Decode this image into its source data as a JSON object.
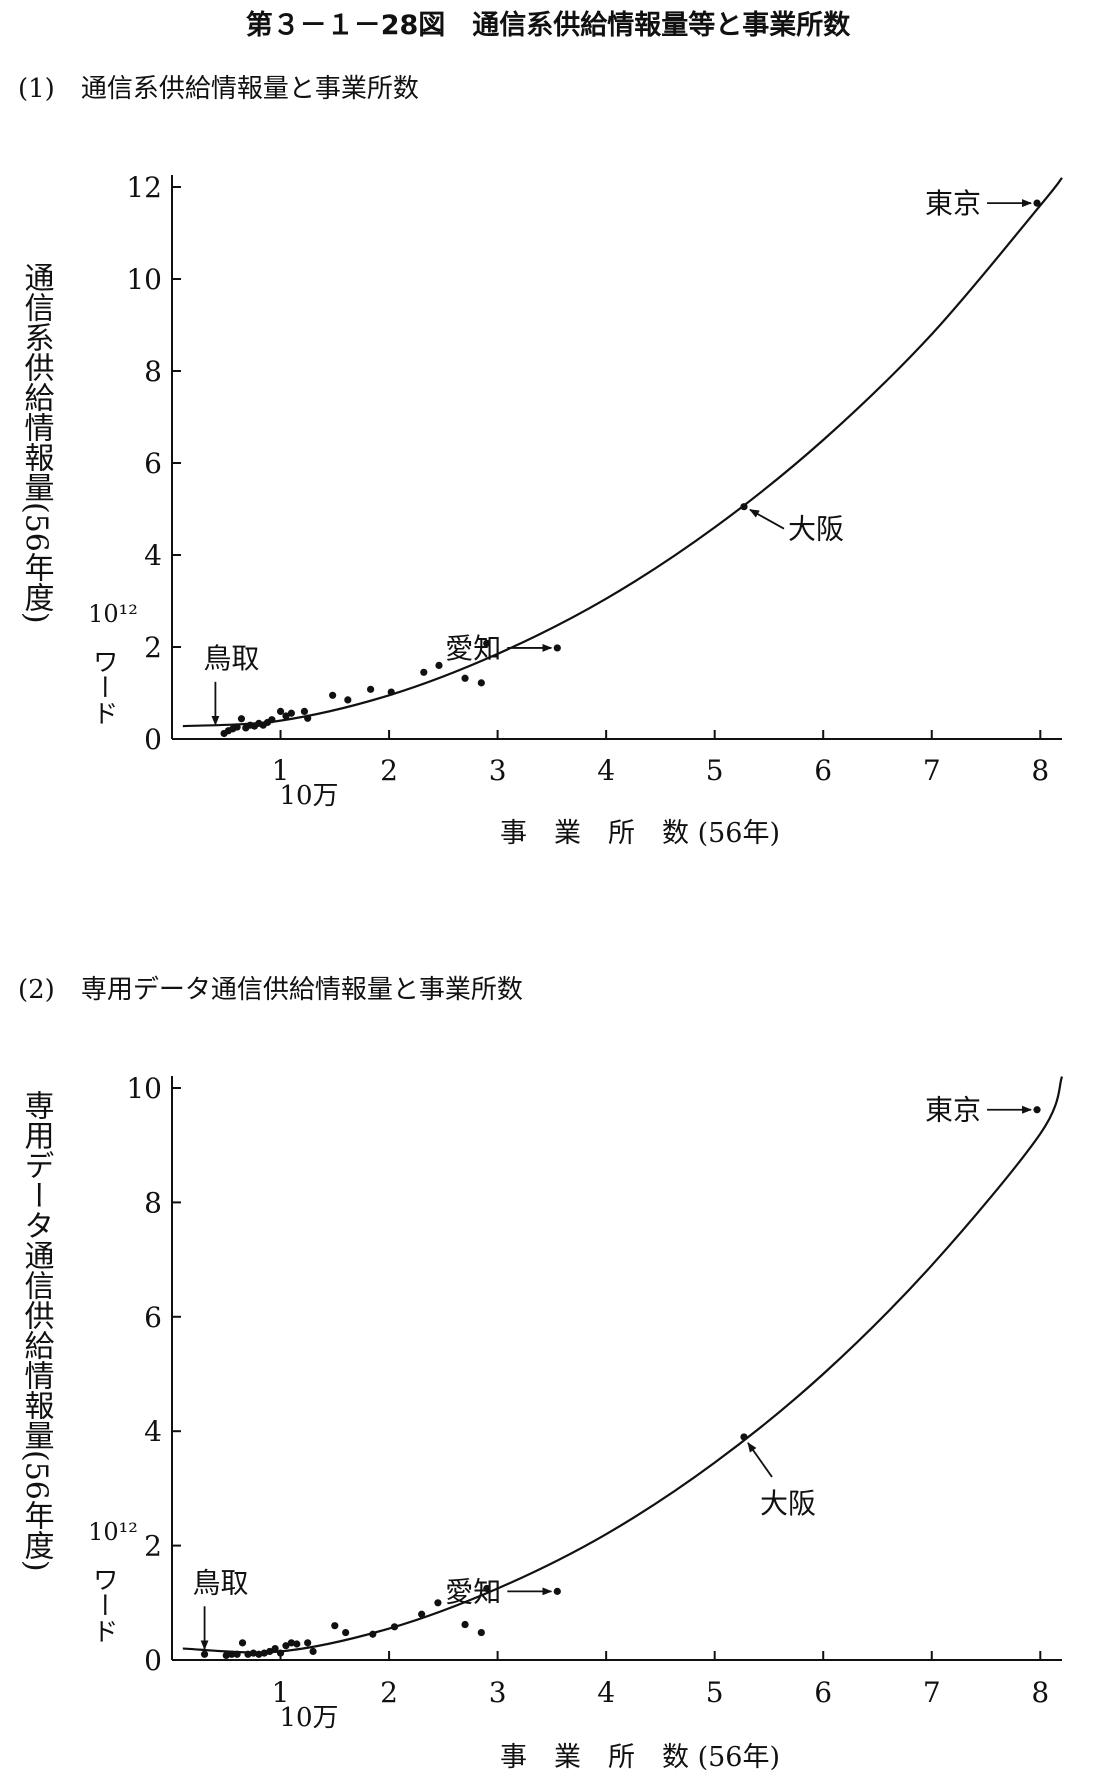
{
  "figure_title": "第３－１－28図　通信系供給情報量等と事業所数",
  "chart_data": [
    {
      "type": "scatter",
      "subtitle": "(1)　通信系供給情報量と事業所数",
      "ylabel": "通信系供給情報量(56年度)",
      "y_unit_top": "10¹²",
      "y_unit_bottom": "ワード",
      "xlabel": "事　業　所　数 (56年)",
      "x_unit": "10万",
      "xlim": [
        0,
        8.2
      ],
      "ylim": [
        0,
        12
      ],
      "x_ticks": [
        1,
        2,
        3,
        4,
        5,
        6,
        7,
        8
      ],
      "y_ticks": [
        0,
        2,
        4,
        6,
        8,
        10,
        12
      ],
      "grid": false,
      "points": [
        {
          "x": 0.48,
          "y": 0.12
        },
        {
          "x": 0.52,
          "y": 0.18
        },
        {
          "x": 0.56,
          "y": 0.22
        },
        {
          "x": 0.6,
          "y": 0.26
        },
        {
          "x": 0.64,
          "y": 0.44
        },
        {
          "x": 0.68,
          "y": 0.24
        },
        {
          "x": 0.72,
          "y": 0.3
        },
        {
          "x": 0.76,
          "y": 0.28
        },
        {
          "x": 0.8,
          "y": 0.34
        },
        {
          "x": 0.84,
          "y": 0.3
        },
        {
          "x": 0.88,
          "y": 0.36
        },
        {
          "x": 0.92,
          "y": 0.42
        },
        {
          "x": 1.0,
          "y": 0.6
        },
        {
          "x": 1.05,
          "y": 0.5
        },
        {
          "x": 1.1,
          "y": 0.56
        },
        {
          "x": 1.22,
          "y": 0.6
        },
        {
          "x": 1.25,
          "y": 0.45
        },
        {
          "x": 1.48,
          "y": 0.95
        },
        {
          "x": 1.62,
          "y": 0.85
        },
        {
          "x": 1.83,
          "y": 1.08
        },
        {
          "x": 2.02,
          "y": 1.02
        },
        {
          "x": 2.32,
          "y": 1.45
        },
        {
          "x": 2.46,
          "y": 1.6
        },
        {
          "x": 2.7,
          "y": 1.32
        },
        {
          "x": 2.85,
          "y": 1.22
        },
        {
          "x": 2.9,
          "y": 2.08
        },
        {
          "x": 3.55,
          "y": 1.98
        },
        {
          "x": 5.27,
          "y": 5.05
        },
        {
          "x": 7.97,
          "y": 11.65
        }
      ],
      "curve": {
        "x": [
          0.1,
          1,
          2,
          3,
          4,
          5,
          6,
          7,
          8,
          8.2
        ],
        "y": [
          0.28,
          0.4,
          0.95,
          1.85,
          3.05,
          4.6,
          6.5,
          8.8,
          11.6,
          12.2
        ]
      },
      "annotations": [
        {
          "label": "東京",
          "x": 7.97,
          "y": 11.65,
          "arrow": "right-to-point"
        },
        {
          "label": "大阪",
          "x": 5.27,
          "y": 5.05,
          "arrow": "down-right-to-point"
        },
        {
          "label": "愛知",
          "x": 3.55,
          "y": 1.98,
          "arrow": "right-to-point"
        },
        {
          "label": "鳥取",
          "x": 0.4,
          "y": 0.2,
          "arrow": "down-to-point"
        }
      ]
    },
    {
      "type": "scatter",
      "subtitle": "(2)　専用データ通信供給情報量と事業所数",
      "ylabel": "専用データ通信供給情報量(56年度)",
      "y_unit_top": "10¹²",
      "y_unit_bottom": "ワード",
      "xlabel": "事　業　所　数 (56年)",
      "x_unit": "10万",
      "xlim": [
        0,
        8.2
      ],
      "ylim": [
        0,
        10
      ],
      "x_ticks": [
        1,
        2,
        3,
        4,
        5,
        6,
        7,
        8
      ],
      "y_ticks": [
        0,
        2,
        4,
        6,
        8,
        10
      ],
      "grid": false,
      "points": [
        {
          "x": 0.3,
          "y": 0.1
        },
        {
          "x": 0.5,
          "y": 0.08
        },
        {
          "x": 0.55,
          "y": 0.1
        },
        {
          "x": 0.6,
          "y": 0.1
        },
        {
          "x": 0.65,
          "y": 0.3
        },
        {
          "x": 0.7,
          "y": 0.1
        },
        {
          "x": 0.75,
          "y": 0.12
        },
        {
          "x": 0.8,
          "y": 0.1
        },
        {
          "x": 0.85,
          "y": 0.12
        },
        {
          "x": 0.9,
          "y": 0.15
        },
        {
          "x": 0.95,
          "y": 0.2
        },
        {
          "x": 1.0,
          "y": 0.12
        },
        {
          "x": 1.05,
          "y": 0.25
        },
        {
          "x": 1.1,
          "y": 0.3
        },
        {
          "x": 1.15,
          "y": 0.28
        },
        {
          "x": 1.25,
          "y": 0.3
        },
        {
          "x": 1.3,
          "y": 0.15
        },
        {
          "x": 1.5,
          "y": 0.6
        },
        {
          "x": 1.6,
          "y": 0.48
        },
        {
          "x": 1.85,
          "y": 0.45
        },
        {
          "x": 2.05,
          "y": 0.58
        },
        {
          "x": 2.3,
          "y": 0.8
        },
        {
          "x": 2.45,
          "y": 1.0
        },
        {
          "x": 2.7,
          "y": 0.62
        },
        {
          "x": 2.85,
          "y": 0.48
        },
        {
          "x": 2.9,
          "y": 1.25
        },
        {
          "x": 3.55,
          "y": 1.2
        },
        {
          "x": 5.27,
          "y": 3.9
        },
        {
          "x": 7.97,
          "y": 9.62
        }
      ],
      "curve": {
        "x": [
          0.1,
          1,
          2,
          3,
          4,
          5,
          6,
          7,
          8,
          8.2
        ],
        "y": [
          0.2,
          0.15,
          0.55,
          1.25,
          2.2,
          3.45,
          5.0,
          6.9,
          9.2,
          10.2
        ]
      },
      "annotations": [
        {
          "label": "東京",
          "x": 7.97,
          "y": 9.62,
          "arrow": "right-to-point"
        },
        {
          "label": "大阪",
          "x": 5.27,
          "y": 3.9,
          "arrow": "up-right-to-point"
        },
        {
          "label": "愛知",
          "x": 3.55,
          "y": 1.2,
          "arrow": "right-to-point"
        },
        {
          "label": "鳥取",
          "x": 0.3,
          "y": 0.1,
          "arrow": "down-to-point"
        }
      ]
    }
  ]
}
